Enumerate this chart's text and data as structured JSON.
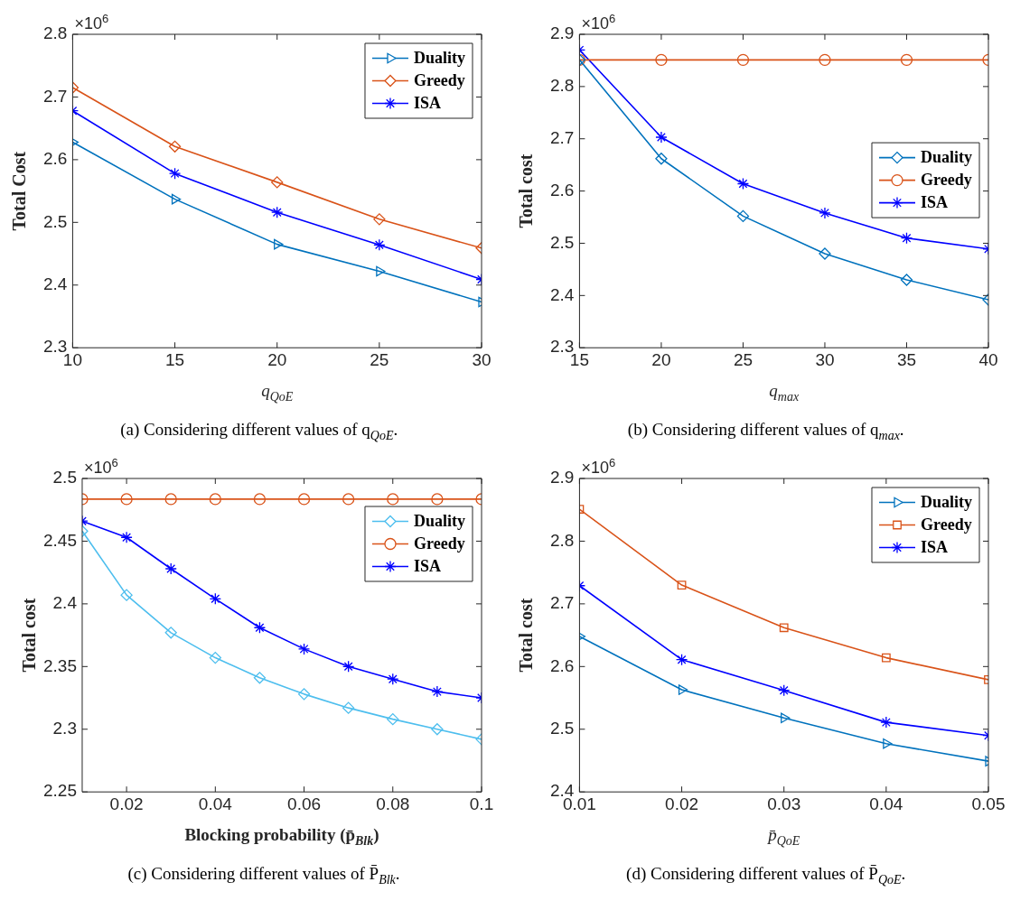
{
  "chart_data": [
    {
      "type": "line",
      "xlabel": "q$_{QoE}$",
      "ylabel": "Total Cost",
      "x": [
        10,
        15,
        20,
        25,
        30
      ],
      "xlim": [
        10,
        30
      ],
      "xticks": [
        10,
        15,
        20,
        25,
        30
      ],
      "ylim": [
        2.3,
        2.8
      ],
      "yticks": [
        2.3,
        2.4,
        2.5,
        2.6,
        2.7,
        2.8
      ],
      "grid": false,
      "legend": "top right",
      "series": [
        {
          "name": "Duality",
          "color": "#0072bd",
          "marker": "triangle",
          "values": [
            2.628,
            2.537,
            2.465,
            2.422,
            2.373
          ]
        },
        {
          "name": "Greedy",
          "color": "#d95319",
          "marker": "diamond",
          "values": [
            2.715,
            2.621,
            2.564,
            2.505,
            2.459
          ]
        },
        {
          "name": "ISA",
          "color": "#0000ff",
          "marker": "cross",
          "values": [
            2.678,
            2.578,
            2.516,
            2.464,
            2.409
          ]
        }
      ],
      "annotations": [
        "×10$^{6}$",
        "(a) Considering different values of q$_{QoE}$."
      ]
    },
    {
      "type": "line",
      "xlabel": "q$_{max}$",
      "ylabel": "Total cost",
      "x": [
        15,
        20,
        25,
        30,
        35,
        40
      ],
      "xlim": [
        15,
        40
      ],
      "xticks": [
        15,
        20,
        25,
        30,
        35,
        40
      ],
      "ylim": [
        2.3,
        2.9
      ],
      "yticks": [
        2.3,
        2.4,
        2.5,
        2.6,
        2.7,
        2.8,
        2.9
      ],
      "grid": false,
      "legend": "right",
      "series": [
        {
          "name": "Duality",
          "color": "#0072bd",
          "marker": "diamond",
          "values": [
            2.851,
            2.662,
            2.552,
            2.48,
            2.43,
            2.392
          ]
        },
        {
          "name": "Greedy",
          "color": "#d95319",
          "marker": "circle",
          "values": [
            2.851,
            2.851,
            2.851,
            2.851,
            2.851,
            2.851
          ]
        },
        {
          "name": "ISA",
          "color": "#0000ff",
          "marker": "cross",
          "values": [
            2.87,
            2.703,
            2.614,
            2.558,
            2.51,
            2.489
          ]
        }
      ],
      "annotations": [
        "×10$^{6}$",
        "(b) Considering different values of q$_{max}$."
      ]
    },
    {
      "type": "line",
      "xlabel": "Blocking probability (p̄$_{Blk}$)",
      "ylabel": "Total cost",
      "x": [
        0.01,
        0.02,
        0.03,
        0.04,
        0.05,
        0.06,
        0.07,
        0.08,
        0.09,
        0.1
      ],
      "xlim": [
        0.01,
        0.1
      ],
      "xticks": [
        0.02,
        0.04,
        0.06,
        0.08,
        0.1
      ],
      "ylim": [
        2.25,
        2.5
      ],
      "yticks": [
        2.25,
        2.3,
        2.35,
        2.4,
        2.45,
        2.5
      ],
      "grid": false,
      "legend": "top right",
      "series": [
        {
          "name": "Duality",
          "color": "#4dbeee",
          "marker": "diamond",
          "values": [
            2.458,
            2.407,
            2.377,
            2.357,
            2.341,
            2.328,
            2.317,
            2.308,
            2.3,
            2.292
          ]
        },
        {
          "name": "Greedy",
          "color": "#d95319",
          "marker": "circle",
          "values": [
            2.4835,
            2.4835,
            2.4835,
            2.4835,
            2.4835,
            2.4835,
            2.4835,
            2.4835,
            2.4835,
            2.4835
          ]
        },
        {
          "name": "ISA",
          "color": "#0000ff",
          "marker": "cross",
          "values": [
            2.466,
            2.453,
            2.428,
            2.404,
            2.381,
            2.364,
            2.35,
            2.34,
            2.33,
            2.325
          ]
        }
      ],
      "annotations": [
        "×10$^{6}$",
        "(c) Considering different values of P̄$_{Blk}$."
      ]
    },
    {
      "type": "line",
      "xlabel": "p̄$_{QoE}$",
      "ylabel": "Total cost",
      "x": [
        0.01,
        0.02,
        0.03,
        0.04,
        0.05
      ],
      "xlim": [
        0.01,
        0.05
      ],
      "xticks": [
        0.01,
        0.02,
        0.03,
        0.04,
        0.05
      ],
      "ylim": [
        2.4,
        2.9
      ],
      "yticks": [
        2.4,
        2.5,
        2.6,
        2.7,
        2.8,
        2.9
      ],
      "grid": false,
      "legend": "top right",
      "series": [
        {
          "name": "Duality",
          "color": "#0072bd",
          "marker": "triangle",
          "values": [
            2.648,
            2.563,
            2.518,
            2.477,
            2.449
          ]
        },
        {
          "name": "Greedy",
          "color": "#d95319",
          "marker": "square",
          "values": [
            2.851,
            2.73,
            2.662,
            2.614,
            2.579
          ]
        },
        {
          "name": "ISA",
          "color": "#0000ff",
          "marker": "cross",
          "values": [
            2.729,
            2.611,
            2.562,
            2.511,
            2.49
          ]
        }
      ],
      "annotations": [
        "×10$^{6}$",
        "(d) Considering different values of P̄$_{QoE}$."
      ]
    }
  ]
}
